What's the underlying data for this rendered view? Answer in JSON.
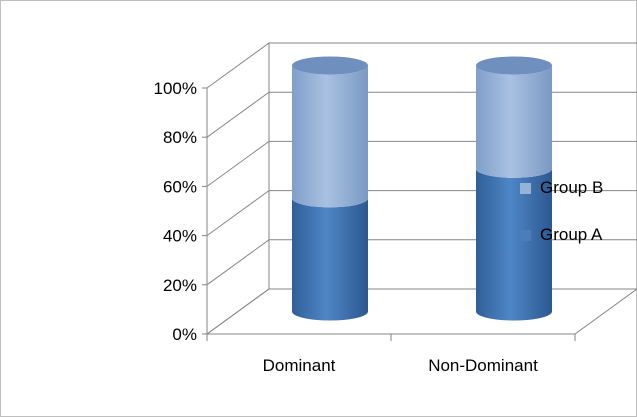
{
  "chart_data": {
    "type": "bar",
    "style": "3d-stacked-cylinder",
    "categories": [
      "Dominant",
      "Non-Dominant"
    ],
    "series": [
      {
        "name": "Group A",
        "values": [
          46,
          58
        ],
        "color": "#4a7ebb"
      },
      {
        "name": "Group B",
        "values": [
          54,
          42
        ],
        "color": "#95b3d7"
      }
    ],
    "y_ticks": [
      "0%",
      "20%",
      "40%",
      "60%",
      "80%",
      "100%"
    ],
    "ylim": [
      0,
      100
    ],
    "grid": true,
    "legend_position": "right",
    "legend": [
      {
        "label": "Group B",
        "color": "#95b3d7"
      },
      {
        "label": "Group A",
        "color": "#4a7ebb"
      }
    ]
  }
}
